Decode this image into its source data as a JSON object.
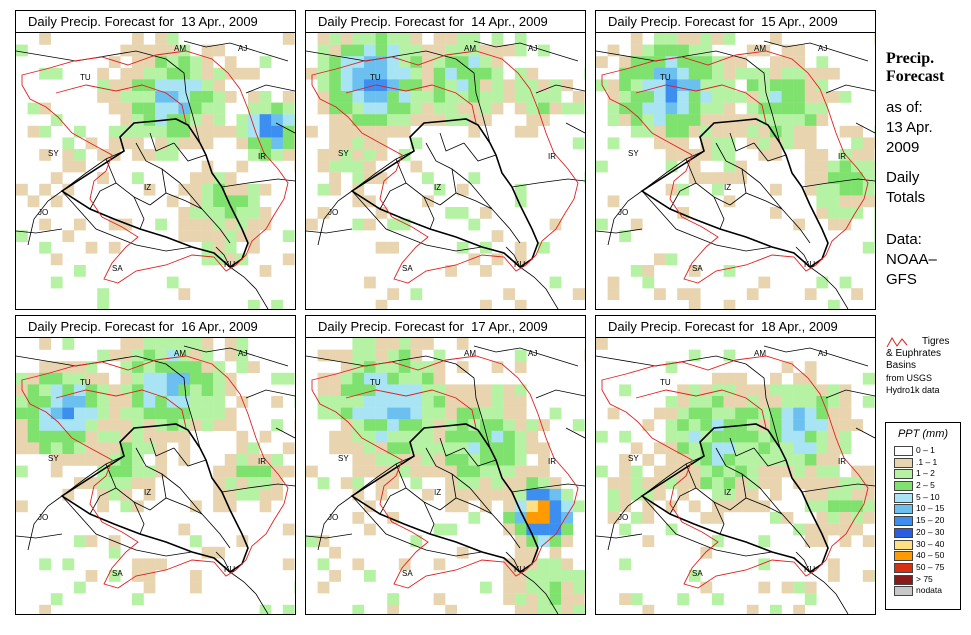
{
  "panels": [
    {
      "title": "Daily Precip. Forecast for  13 Apr., 2009",
      "day": 0
    },
    {
      "title": "Daily Precip. Forecast for  14 Apr., 2009",
      "day": 1
    },
    {
      "title": "Daily Precip. Forecast for  15 Apr., 2009",
      "day": 2
    },
    {
      "title": "Daily Precip. Forecast for  16 Apr., 2009",
      "day": 3
    },
    {
      "title": "Daily Precip. Forecast for  17 Apr., 2009",
      "day": 4
    },
    {
      "title": "Daily Precip. Forecast for  18 Apr., 2009",
      "day": 5
    }
  ],
  "country_labels": [
    "AM",
    "AJ",
    "TU",
    "SY",
    "IR",
    "IZ",
    "JO",
    "SA",
    "KU"
  ],
  "side": {
    "heading_1": "Precip.",
    "heading_2": "Forecast",
    "asof_1": "as of:",
    "asof_2": "13 Apr.",
    "asof_3": "2009",
    "totals_1": "Daily",
    "totals_2": "Totals",
    "data_1": "Data:",
    "data_2": "NOAA–",
    "data_3": "GFS"
  },
  "basin_note": {
    "line_1": "Tigres",
    "line_2": "& Euphrates",
    "line_3": "Basins",
    "line_4": "from USGS",
    "line_5": "Hydro1k data",
    "symbol_color": "#e02020"
  },
  "legend": {
    "title": "PPT (mm)",
    "classes": [
      {
        "label": "0 – 1",
        "color": "#ffffff"
      },
      {
        "label": ".1 – 1",
        "color": "#e8d5b0"
      },
      {
        "label": "1 – 2",
        "color": "#b6f2a4"
      },
      {
        "label": "2 – 5",
        "color": "#7fe26e"
      },
      {
        "label": "5 – 10",
        "color": "#a8e4f4"
      },
      {
        "label": "10 – 15",
        "color": "#6cc0f0"
      },
      {
        "label": "15 – 20",
        "color": "#3c8ef0"
      },
      {
        "label": "20 – 30",
        "color": "#2a5ee0"
      },
      {
        "label": "30 – 40",
        "color": "#ffe080"
      },
      {
        "label": "40 – 50",
        "color": "#ff9a00"
      },
      {
        "label": "50 – 75",
        "color": "#d83010"
      },
      {
        "label": "> 75",
        "color": "#8a1a1a"
      },
      {
        "label": "nodata",
        "color": "#c8c8c8"
      }
    ]
  },
  "colors": {
    "basin_outline": "#e02020",
    "border_outline": "#000000"
  }
}
